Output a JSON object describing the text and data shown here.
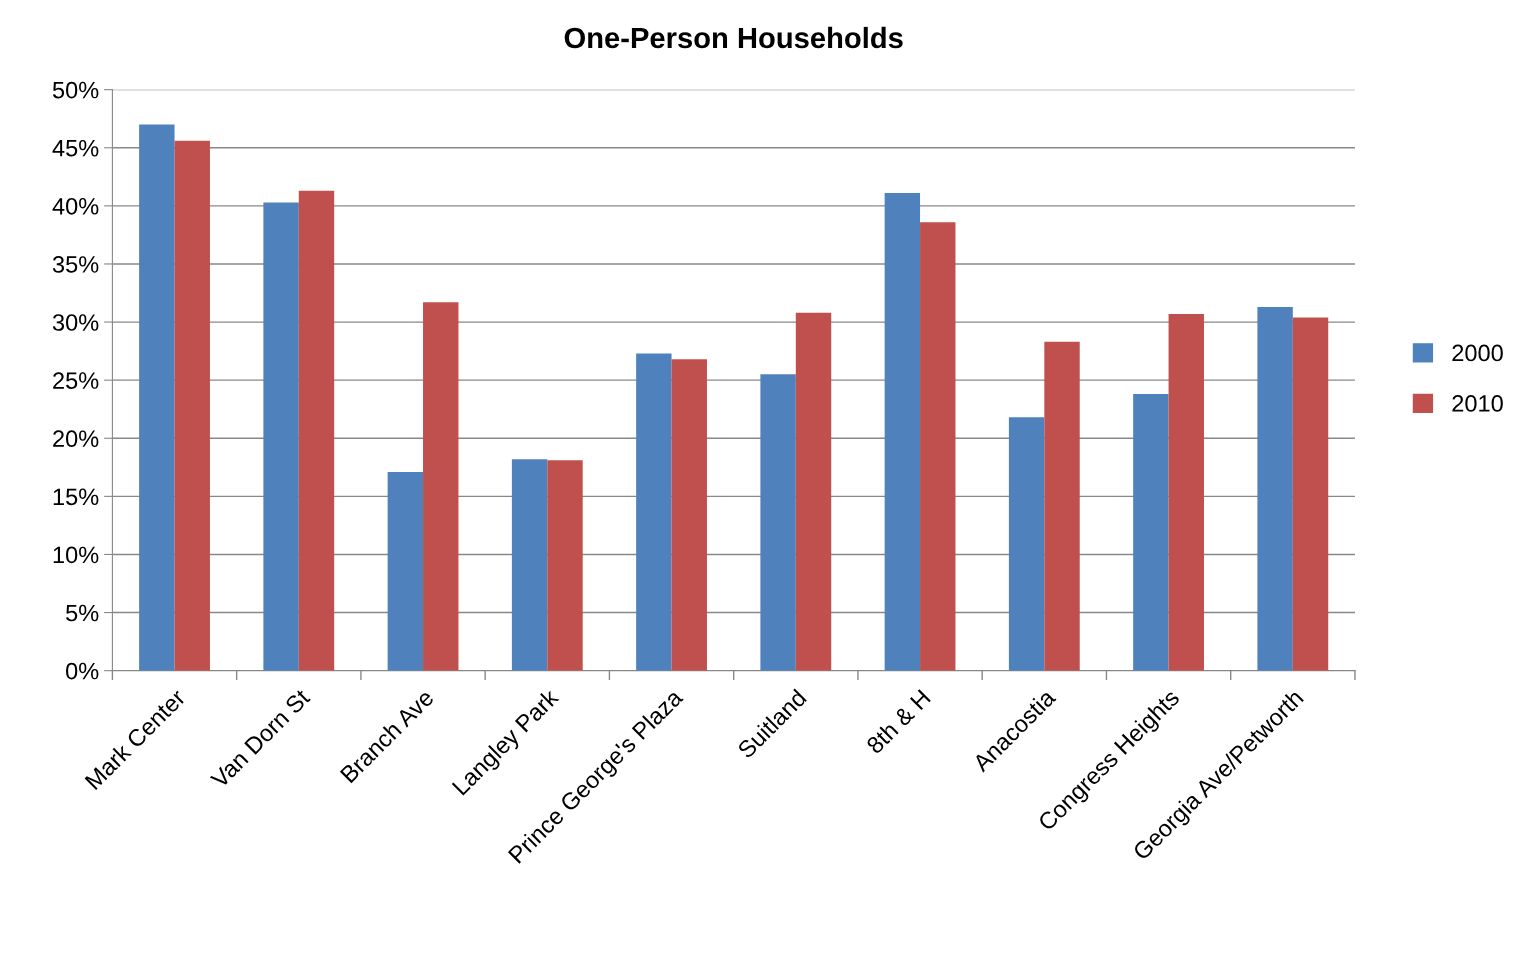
{
  "chart_data": {
    "type": "bar",
    "title": "One-Person Households",
    "categories": [
      "Mark Center",
      "Van Dorn St",
      "Branch Ave",
      "Langley Park",
      "Prince George's Plaza",
      "Suitland",
      "8th & H",
      "Anacostia",
      "Congress Heights",
      "Georgia Ave/Petworth"
    ],
    "series": [
      {
        "name": "2000",
        "color": "#4f81bd",
        "values": [
          47.0,
          40.3,
          17.1,
          18.2,
          27.3,
          25.5,
          41.1,
          21.8,
          23.8,
          31.3
        ]
      },
      {
        "name": "2010",
        "color": "#c0504d",
        "values": [
          45.6,
          41.3,
          31.7,
          18.1,
          26.8,
          30.8,
          38.6,
          28.3,
          30.7,
          30.4
        ]
      }
    ],
    "ylim": [
      0,
      50
    ],
    "yticks": [
      {
        "value": 0,
        "label": "0%"
      },
      {
        "value": 5,
        "label": "5%"
      },
      {
        "value": 10,
        "label": "10%"
      },
      {
        "value": 15,
        "label": "15%"
      },
      {
        "value": 20,
        "label": "20%"
      },
      {
        "value": 25,
        "label": "25%"
      },
      {
        "value": 30,
        "label": "30%"
      },
      {
        "value": 35,
        "label": "35%"
      },
      {
        "value": 40,
        "label": "40%"
      },
      {
        "value": 45,
        "label": "45%"
      },
      {
        "value": 50,
        "label": "50%"
      }
    ],
    "grid": "y",
    "legend": "right"
  }
}
